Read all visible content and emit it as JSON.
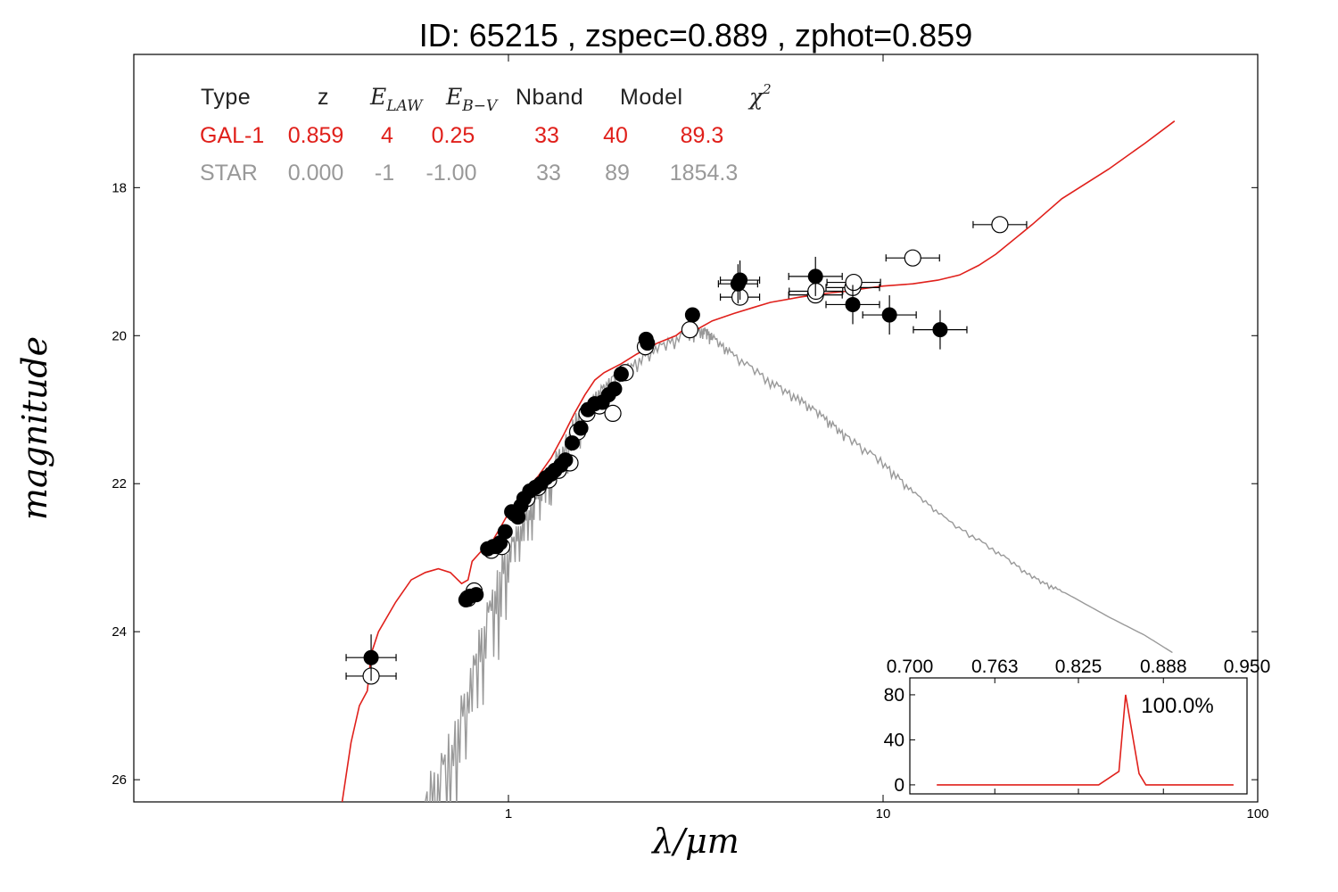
{
  "colors": {
    "galaxy": "#e0201b",
    "star": "#999999",
    "points_filled": "#000000",
    "points_open": "#ffffff"
  },
  "chart_data": [
    {
      "type": "scatter",
      "title": "ID:  65215 , zspec=0.889 , zphot=0.859",
      "xlabel": "λ/μm",
      "ylabel": "magnitude",
      "xscale": "log",
      "xlim": [
        0.1,
        100
      ],
      "ylim": [
        26.3,
        16.2
      ],
      "y_inverted": true,
      "x_ticks": [
        "1",
        "10",
        "100"
      ],
      "y_ticks": [
        "18",
        "20",
        "22",
        "24",
        "26"
      ],
      "legend_table": {
        "headers": [
          "Type",
          "z",
          "E_LAW",
          "E_B-V",
          "Nband",
          "Model",
          "χ²"
        ],
        "rows": [
          {
            "name": "GAL-1",
            "z": "0.859",
            "elaw": "4",
            "ebv": "0.25",
            "nband": "33",
            "model": "40",
            "chi2": "89.3"
          },
          {
            "name": "STAR",
            "z": "0.000",
            "elaw": "-1",
            "ebv": "-1.00",
            "nband": "33",
            "model": "89",
            "chi2": "1854.3"
          }
        ]
      },
      "series": [
        {
          "name": "GAL-1",
          "kind": "line",
          "points": [
            [
              0.36,
              26.3
            ],
            [
              0.38,
              25.5
            ],
            [
              0.4,
              25
            ],
            [
              0.42,
              24.8
            ],
            [
              0.43,
              24.3
            ],
            [
              0.45,
              24
            ],
            [
              0.5,
              23.6
            ],
            [
              0.55,
              23.3
            ],
            [
              0.6,
              23.2
            ],
            [
              0.65,
              23.15
            ],
            [
              0.7,
              23.2
            ],
            [
              0.75,
              23.35
            ],
            [
              0.78,
              23.3
            ],
            [
              0.8,
              23.05
            ],
            [
              0.85,
              22.9
            ],
            [
              0.9,
              22.8
            ],
            [
              0.95,
              22.6
            ],
            [
              1.0,
              22.4
            ],
            [
              1.1,
              22.1
            ],
            [
              1.2,
              21.9
            ],
            [
              1.3,
              21.65
            ],
            [
              1.4,
              21.35
            ],
            [
              1.5,
              21.05
            ],
            [
              1.6,
              20.8
            ],
            [
              1.7,
              20.6
            ],
            [
              1.8,
              20.5
            ],
            [
              2.0,
              20.38
            ],
            [
              2.2,
              20.25
            ],
            [
              2.5,
              20.1
            ],
            [
              2.8,
              20.0
            ],
            [
              3.0,
              19.88
            ],
            [
              3.1,
              19.95
            ],
            [
              3.5,
              19.8
            ],
            [
              4.0,
              19.7
            ],
            [
              4.5,
              19.62
            ],
            [
              5.0,
              19.55
            ],
            [
              6.0,
              19.48
            ],
            [
              7.0,
              19.43
            ],
            [
              8.0,
              19.4
            ],
            [
              9.0,
              19.36
            ],
            [
              10.0,
              19.33
            ],
            [
              12.0,
              19.3
            ],
            [
              14.0,
              19.25
            ],
            [
              16.0,
              19.18
            ],
            [
              18.0,
              19.05
            ],
            [
              20.0,
              18.9
            ],
            [
              25.0,
              18.5
            ],
            [
              30.0,
              18.15
            ],
            [
              40.0,
              17.75
            ],
            [
              50.0,
              17.4
            ],
            [
              60.0,
              17.1
            ]
          ]
        },
        {
          "name": "STAR",
          "kind": "line",
          "points": [
            [
              0.6,
              26.3
            ],
            [
              0.7,
              25.6
            ],
            [
              0.8,
              24.6
            ],
            [
              0.9,
              23.6
            ],
            [
              1.0,
              22.9
            ],
            [
              1.1,
              22.5
            ],
            [
              1.2,
              22.1
            ],
            [
              1.3,
              21.8
            ],
            [
              1.5,
              21.2
            ],
            [
              1.7,
              20.8
            ],
            [
              1.9,
              20.55
            ],
            [
              2.1,
              20.4
            ],
            [
              2.5,
              20.15
            ],
            [
              3.0,
              19.95
            ],
            [
              3.3,
              19.9
            ],
            [
              3.5,
              20.0
            ],
            [
              4.0,
              20.25
            ],
            [
              5.0,
              20.6
            ],
            [
              6.0,
              20.85
            ],
            [
              7.0,
              21.1
            ],
            [
              8.0,
              21.35
            ],
            [
              10.0,
              21.7
            ],
            [
              12.0,
              22.1
            ],
            [
              15.0,
              22.5
            ],
            [
              20.0,
              22.9
            ],
            [
              25.0,
              23.25
            ],
            [
              30.0,
              23.45
            ],
            [
              40.0,
              23.8
            ],
            [
              50.0,
              24.05
            ],
            [
              60.0,
              24.3
            ]
          ]
        },
        {
          "name": "observed",
          "kind": "points",
          "style": "filled",
          "points": [
            [
              0.43,
              24.35
            ],
            [
              0.77,
              23.57
            ],
            [
              0.79,
              23.52
            ],
            [
              0.82,
              23.5
            ],
            [
              0.88,
              22.88
            ],
            [
              0.91,
              22.85
            ],
            [
              0.93,
              22.85
            ],
            [
              0.95,
              22.8
            ],
            [
              0.98,
              22.65
            ],
            [
              1.02,
              22.38
            ],
            [
              1.06,
              22.45
            ],
            [
              1.08,
              22.3
            ],
            [
              1.1,
              22.2
            ],
            [
              1.14,
              22.1
            ],
            [
              1.18,
              22.05
            ],
            [
              1.22,
              22.0
            ],
            [
              1.26,
              21.92
            ],
            [
              1.3,
              21.87
            ],
            [
              1.33,
              21.82
            ],
            [
              1.38,
              21.75
            ],
            [
              1.42,
              21.68
            ],
            [
              1.48,
              21.45
            ],
            [
              1.56,
              21.25
            ],
            [
              1.63,
              21.0
            ],
            [
              1.7,
              20.92
            ],
            [
              1.78,
              20.9
            ],
            [
              1.85,
              20.8
            ],
            [
              1.92,
              20.72
            ],
            [
              2.0,
              20.52
            ],
            [
              2.33,
              20.05
            ],
            [
              2.35,
              20.1
            ],
            [
              3.1,
              19.72
            ],
            [
              4.1,
              19.3
            ],
            [
              4.15,
              19.25
            ],
            [
              6.6,
              19.2
            ],
            [
              8.3,
              19.58
            ],
            [
              10.4,
              19.72
            ],
            [
              14.2,
              19.92
            ]
          ]
        },
        {
          "name": "model",
          "kind": "points",
          "style": "open",
          "points": [
            [
              0.43,
              24.6
            ],
            [
              0.78,
              23.55
            ],
            [
              0.81,
              23.45
            ],
            [
              0.9,
              22.9
            ],
            [
              0.96,
              22.85
            ],
            [
              1.04,
              22.4
            ],
            [
              1.12,
              22.2
            ],
            [
              1.2,
              22.05
            ],
            [
              1.28,
              21.95
            ],
            [
              1.36,
              21.82
            ],
            [
              1.46,
              21.72
            ],
            [
              1.53,
              21.3
            ],
            [
              1.62,
              21.05
            ],
            [
              1.75,
              20.95
            ],
            [
              1.9,
              21.05
            ],
            [
              2.05,
              20.5
            ],
            [
              2.32,
              20.15
            ],
            [
              3.05,
              19.92
            ],
            [
              4.15,
              19.48
            ],
            [
              6.6,
              19.45
            ],
            [
              6.62,
              19.4
            ],
            [
              8.3,
              19.35
            ],
            [
              8.35,
              19.28
            ],
            [
              12.0,
              18.95
            ],
            [
              20.5,
              18.5
            ]
          ]
        }
      ]
    },
    {
      "type": "line",
      "title": "",
      "xlim": [
        0.7,
        0.95
      ],
      "ylim": [
        -8,
        95
      ],
      "x_ticks": [
        "0.700",
        "0.763",
        "0.825",
        "0.888",
        "0.950"
      ],
      "y_ticks": [
        "0",
        "40",
        "80"
      ],
      "annotation": "100.0%",
      "series": [
        {
          "name": "",
          "x": [
            0.72,
            0.78,
            0.82,
            0.84,
            0.855,
            0.86,
            0.87,
            0.875,
            0.89,
            0.94
          ],
          "y": [
            0,
            0,
            0,
            0,
            12,
            80,
            10,
            0,
            0,
            0
          ]
        }
      ]
    }
  ]
}
